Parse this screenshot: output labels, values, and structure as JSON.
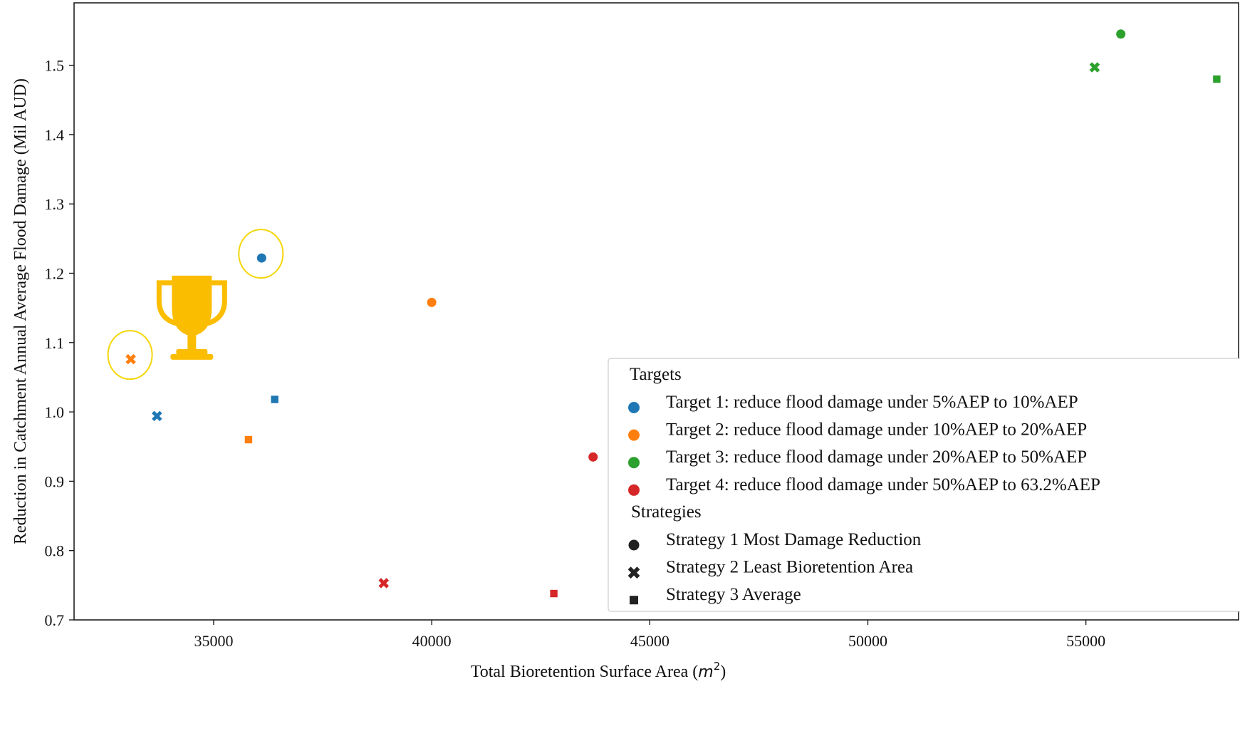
{
  "chart_data": {
    "type": "scatter",
    "xlabel": "Total Bioretention Surface Area (",
    "xlabel_unit": "m",
    "xlabel_exp": "2",
    "xlabel_close": ")",
    "ylabel": "Reduction in Catchment Annual Average Flood Damage (Mil AUD)",
    "xlim": [
      31800,
      58500
    ],
    "ylim": [
      0.7,
      1.59
    ],
    "xticks": [
      35000,
      40000,
      45000,
      50000,
      55000
    ],
    "xtick_labels": [
      "35000",
      "40000",
      "45000",
      "50000",
      "55000"
    ],
    "yticks": [
      0.7,
      0.8,
      0.9,
      1.0,
      1.1,
      1.2,
      1.3,
      1.4,
      1.5
    ],
    "ytick_labels": [
      "0.7",
      "0.8",
      "0.9",
      "1.0",
      "1.1",
      "1.2",
      "1.3",
      "1.4",
      "1.5"
    ],
    "grid": false,
    "legend_position": "lower-right",
    "colors": {
      "target1": "#1f77b4",
      "target2": "#ff7f0e",
      "target3": "#2ca02c",
      "target4": "#d62728",
      "highlight": "#f5d60a",
      "trophy": "#fbbd00"
    },
    "legend": {
      "targets_title": "Targets",
      "targets": [
        {
          "label": "Target 1: reduce flood damage under 5%AEP to 10%AEP",
          "color": "#1f77b4"
        },
        {
          "label": "Target 2: reduce flood damage under 10%AEP to 20%AEP",
          "color": "#ff7f0e"
        },
        {
          "label": "Target 3: reduce flood damage under 20%AEP to 50%AEP",
          "color": "#2ca02c"
        },
        {
          "label": "Target 4: reduce flood damage under 50%AEP to 63.2%AEP",
          "color": "#d62728"
        }
      ],
      "strategies_title": "Strategies",
      "strategies": [
        {
          "label": "Strategy 1 Most Damage Reduction",
          "marker": "circle"
        },
        {
          "label": "Strategy 2 Least Bioretention Area",
          "marker": "x"
        },
        {
          "label": "Strategy 3 Average",
          "marker": "square"
        }
      ]
    },
    "points": [
      {
        "target": 1,
        "strategy": 1,
        "x": 36100,
        "y": 1.222,
        "highlighted": true
      },
      {
        "target": 1,
        "strategy": 2,
        "x": 33700,
        "y": 0.994,
        "highlighted": false
      },
      {
        "target": 1,
        "strategy": 3,
        "x": 36400,
        "y": 1.018,
        "highlighted": false
      },
      {
        "target": 2,
        "strategy": 1,
        "x": 40000,
        "y": 1.158,
        "highlighted": false
      },
      {
        "target": 2,
        "strategy": 2,
        "x": 33100,
        "y": 1.076,
        "highlighted": true
      },
      {
        "target": 2,
        "strategy": 3,
        "x": 35800,
        "y": 0.96,
        "highlighted": false
      },
      {
        "target": 3,
        "strategy": 1,
        "x": 55800,
        "y": 1.545,
        "highlighted": false
      },
      {
        "target": 3,
        "strategy": 2,
        "x": 55200,
        "y": 1.497,
        "highlighted": false
      },
      {
        "target": 3,
        "strategy": 3,
        "x": 58000,
        "y": 1.48,
        "highlighted": false
      },
      {
        "target": 4,
        "strategy": 1,
        "x": 43700,
        "y": 0.935,
        "highlighted": false
      },
      {
        "target": 4,
        "strategy": 2,
        "x": 38900,
        "y": 0.753,
        "highlighted": false
      },
      {
        "target": 4,
        "strategy": 3,
        "x": 42800,
        "y": 0.738,
        "highlighted": false
      }
    ],
    "annotations": [
      {
        "type": "trophy-icon",
        "x": 34500,
        "y": 1.14
      }
    ]
  }
}
